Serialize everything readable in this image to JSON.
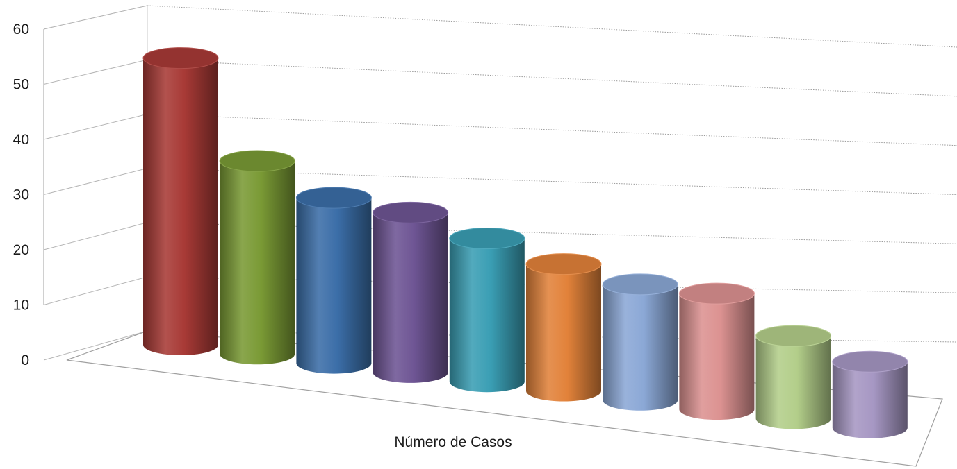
{
  "chart_data": {
    "type": "bar",
    "style": "3d-cylinder",
    "categories": [
      "Número de Casos"
    ],
    "xlabel": "Número de Casos",
    "ylabel": "",
    "ylim": [
      0,
      60
    ],
    "yticks": [
      0,
      10,
      20,
      30,
      40,
      50,
      60
    ],
    "grid": true,
    "legend": "none",
    "series": [
      {
        "values": [
          52
        ],
        "color": "#a83a36"
      },
      {
        "values": [
          35
        ],
        "color": "#7a9a35"
      },
      {
        "values": [
          30
        ],
        "color": "#3b6ea8"
      },
      {
        "values": [
          29
        ],
        "color": "#6e5594"
      },
      {
        "values": [
          26
        ],
        "color": "#3a9eb4"
      },
      {
        "values": [
          23
        ],
        "color": "#e2823a"
      },
      {
        "values": [
          21
        ],
        "color": "#8ba8d6"
      },
      {
        "values": [
          21
        ],
        "color": "#dc9291"
      },
      {
        "values": [
          15
        ],
        "color": "#b3ce8a"
      },
      {
        "values": [
          12
        ],
        "color": "#a697c3"
      }
    ]
  }
}
